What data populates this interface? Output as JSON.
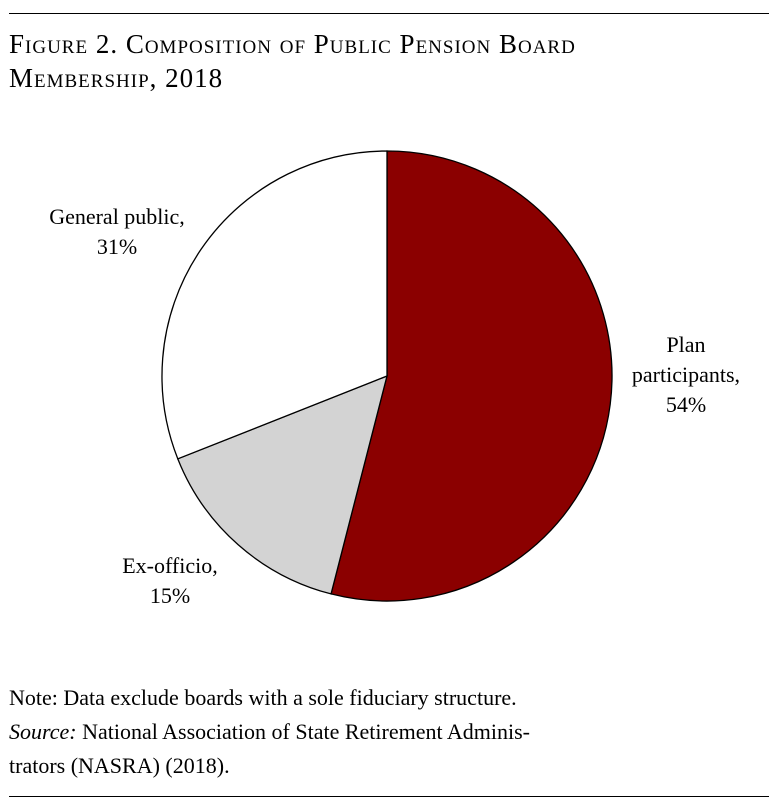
{
  "figure": {
    "title_line1": "Figure 2. Composition of Public Pension Board",
    "title_line2": "Membership, 2018"
  },
  "chart_data": {
    "type": "pie",
    "title": "Figure 2. Composition of Public Pension Board Membership, 2018",
    "slices": [
      {
        "label_lines": [
          "Plan",
          "participants,",
          "54%"
        ],
        "category": "Plan participants",
        "value": 54,
        "color": "#8B0000"
      },
      {
        "label_lines": [
          "Ex-officio,",
          "15%"
        ],
        "category": "Ex-officio",
        "value": 15,
        "color": "#D3D3D3"
      },
      {
        "label_lines": [
          "General public,",
          "31%"
        ],
        "category": "General public",
        "value": 31,
        "color": "#FFFFFF"
      }
    ],
    "start": "12 o'clock",
    "direction": "clockwise",
    "legend": "none (direct labels)"
  },
  "note": {
    "line1": "Note: Data exclude boards with a sole fiduciary structure.",
    "source_label": "Source:",
    "source_text_line2": " National Association of State Retirement Adminis-",
    "source_text_line3": "trators (NASRA) (2018)."
  }
}
